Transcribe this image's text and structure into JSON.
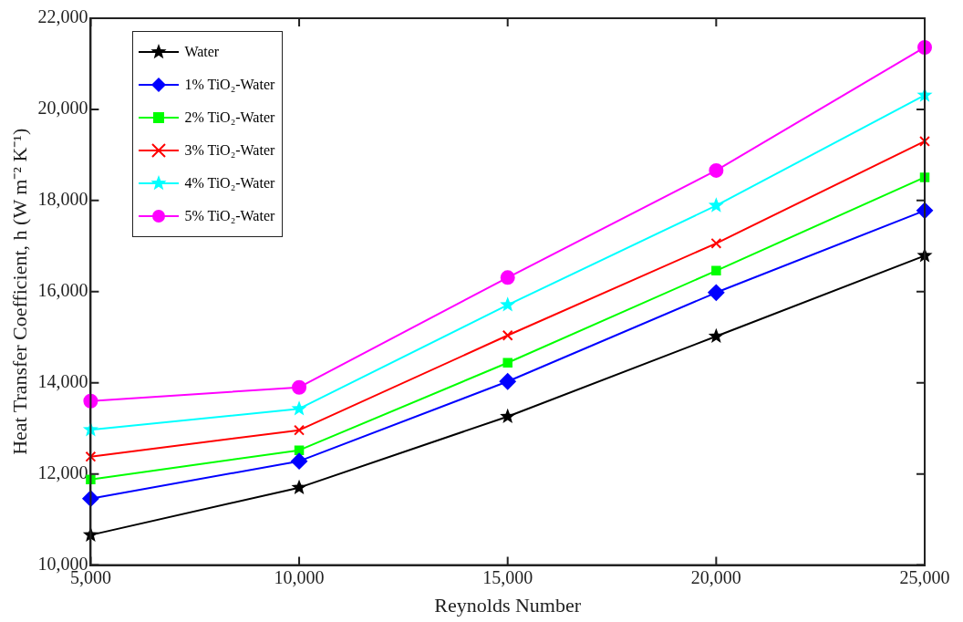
{
  "chart_data": {
    "type": "line",
    "xlabel": "Reynolds Number",
    "ylabel": "Heat Transfer Coefficient, h (W m⁻² K⁻¹)",
    "x": [
      5000,
      10000,
      15000,
      20000,
      25000
    ],
    "xlim": [
      5000,
      25000
    ],
    "xticks": [
      {
        "value": 5000,
        "label": "5,000"
      },
      {
        "value": 10000,
        "label": "10,000"
      },
      {
        "value": 15000,
        "label": "15,000"
      },
      {
        "value": 20000,
        "label": "20,000"
      },
      {
        "value": 25000,
        "label": "25,000"
      }
    ],
    "ylim": [
      10000,
      22000
    ],
    "yticks": [
      {
        "value": 10000,
        "label": "10,000"
      },
      {
        "value": 12000,
        "label": "12,000"
      },
      {
        "value": 14000,
        "label": "14,000"
      },
      {
        "value": 16000,
        "label": "16,000"
      },
      {
        "value": 18000,
        "label": "18,000"
      },
      {
        "value": 20000,
        "label": "20,000"
      },
      {
        "value": 22000,
        "label": "22,000"
      }
    ],
    "grid": false,
    "legend": "top left",
    "line_style": "solid",
    "series": [
      {
        "name": "Water",
        "color": "#000000",
        "marker": "star",
        "values": [
          10660,
          11700,
          13260,
          15020,
          16790
        ]
      },
      {
        "name": "1% TiO₂-Water",
        "color": "#0000ff",
        "marker": "diamond",
        "values": [
          11460,
          12280,
          14030,
          15980,
          17780
        ]
      },
      {
        "name": "2% TiO₂-Water",
        "color": "#00ff00",
        "marker": "square",
        "values": [
          11880,
          12520,
          14440,
          16460,
          18510
        ]
      },
      {
        "name": "3% TiO₂-Water",
        "color": "#ff0000",
        "marker": "cross",
        "values": [
          12380,
          12960,
          15040,
          17060,
          19300
        ]
      },
      {
        "name": "4% TiO₂-Water",
        "color": "#00ffff",
        "marker": "star",
        "values": [
          12970,
          13430,
          15710,
          17890,
          20310
        ]
      },
      {
        "name": "5% TiO₂-Water",
        "color": "#ff00ff",
        "marker": "circle",
        "values": [
          13600,
          13900,
          16310,
          18660,
          21360
        ]
      }
    ]
  }
}
